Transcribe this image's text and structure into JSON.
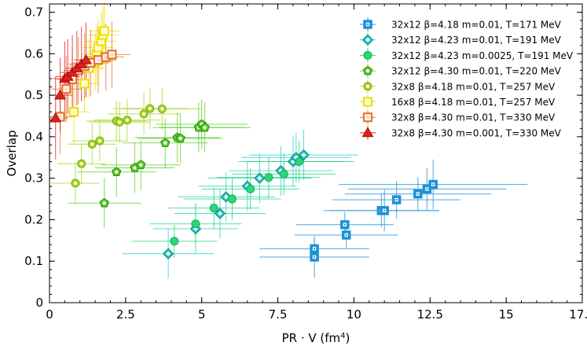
{
  "chart_data": {
    "type": "scatter",
    "xlabel": "PR · V (fm",
    "xlabel_sup": "4",
    "xlabel_end": ")",
    "ylabel": "Overlap",
    "xlim": [
      0,
      17.5
    ],
    "ylim": [
      0,
      0.72
    ],
    "x_ticks": [
      0,
      2.5,
      5,
      7.5,
      10,
      12.5,
      15,
      17.5
    ],
    "x_tick_labels": [
      "0",
      "2.5",
      "5",
      "7.5",
      "10",
      "12.5",
      "15",
      "17.5"
    ],
    "y_ticks": [
      0,
      0.1,
      0.2,
      0.3,
      0.4,
      0.5,
      0.6,
      0.7
    ],
    "y_tick_labels": [
      "0",
      "0.1",
      "0.2",
      "0.3",
      "0.4",
      "0.5",
      "0.6",
      "0.7"
    ],
    "legend_position": "top-right",
    "grid": false,
    "series": [
      {
        "name": "32x12 β=4.18 m=0.01, T=171 MeV",
        "marker": "square-dot",
        "color": "#1e90d8",
        "points": [
          [
            8.7,
            0.13,
            1.8,
            0.025
          ],
          [
            8.7,
            0.11,
            1.8,
            0.05
          ],
          [
            9.7,
            0.188,
            1.6,
            0.03
          ],
          [
            9.75,
            0.163,
            1.7,
            0.03
          ],
          [
            10.9,
            0.222,
            1.9,
            0.04
          ],
          [
            11.0,
            0.222,
            1.8,
            0.05
          ],
          [
            11.4,
            0.248,
            2.1,
            0.045
          ],
          [
            12.1,
            0.262,
            2.4,
            0.04
          ],
          [
            12.4,
            0.274,
            2.6,
            0.05
          ],
          [
            12.6,
            0.285,
            3.1,
            0.06
          ]
        ]
      },
      {
        "name": "32x12 β=4.23 m=0.01, T=191 MeV",
        "marker": "diamond",
        "color": "#2ed0c8",
        "points": [
          [
            3.9,
            0.118,
            1.5,
            0.06
          ],
          [
            4.8,
            0.178,
            1.4,
            0.06
          ],
          [
            5.6,
            0.215,
            1.5,
            0.06
          ],
          [
            5.8,
            0.255,
            1.6,
            0.06
          ],
          [
            6.5,
            0.281,
            1.6,
            0.06
          ],
          [
            6.9,
            0.3,
            1.7,
            0.06
          ],
          [
            7.6,
            0.318,
            1.7,
            0.06
          ],
          [
            8.0,
            0.34,
            1.8,
            0.06
          ],
          [
            8.1,
            0.35,
            1.8,
            0.06
          ],
          [
            8.35,
            0.356,
            1.8,
            0.06
          ]
        ]
      },
      {
        "name": "32x12 β=4.23 m=0.0025, T=191 MeV",
        "marker": "circle",
        "color": "#28d878",
        "points": [
          [
            4.1,
            0.148,
            1.4,
            0.04
          ],
          [
            4.8,
            0.19,
            1.5,
            0.05
          ],
          [
            5.4,
            0.228,
            1.5,
            0.05
          ],
          [
            6.0,
            0.25,
            1.6,
            0.05
          ],
          [
            6.6,
            0.274,
            1.6,
            0.05
          ],
          [
            7.2,
            0.302,
            1.7,
            0.05
          ],
          [
            7.7,
            0.31,
            1.7,
            0.05
          ],
          [
            8.2,
            0.34,
            1.8,
            0.05
          ]
        ]
      },
      {
        "name": "32x12 β=4.30 m=0.01, T=220 MeV",
        "marker": "pentagon",
        "color": "#60d030",
        "points": [
          [
            1.8,
            0.24,
            1.2,
            0.06
          ],
          [
            2.2,
            0.315,
            1.3,
            0.06
          ],
          [
            2.8,
            0.325,
            1.3,
            0.06
          ],
          [
            3.0,
            0.332,
            1.3,
            0.06
          ],
          [
            3.8,
            0.385,
            1.4,
            0.06
          ],
          [
            4.2,
            0.398,
            1.4,
            0.06
          ],
          [
            4.3,
            0.396,
            1.4,
            0.06
          ],
          [
            4.9,
            0.422,
            1.5,
            0.06
          ],
          [
            5.0,
            0.43,
            1.5,
            0.06
          ],
          [
            5.1,
            0.422,
            1.5,
            0.06
          ]
        ]
      },
      {
        "name": "32x8 β=4.18 m=0.01, T=257 MeV",
        "marker": "circle-dot",
        "color": "#a8d820",
        "points": [
          [
            0.85,
            0.288,
            0.8,
            0.05
          ],
          [
            1.05,
            0.335,
            0.8,
            0.05
          ],
          [
            1.4,
            0.382,
            0.8,
            0.05
          ],
          [
            1.65,
            0.39,
            0.9,
            0.05
          ],
          [
            2.2,
            0.438,
            1.0,
            0.05
          ],
          [
            2.3,
            0.435,
            1.0,
            0.05
          ],
          [
            2.55,
            0.44,
            1.1,
            0.05
          ],
          [
            3.1,
            0.455,
            1.2,
            0.05
          ],
          [
            3.3,
            0.468,
            1.2,
            0.05
          ],
          [
            3.7,
            0.467,
            1.3,
            0.05
          ]
        ]
      },
      {
        "name": "16x8 β=4.18 m=0.01, T=257 MeV",
        "marker": "square-open",
        "color": "#f0e000",
        "points": [
          [
            0.8,
            0.46,
            0.5,
            0.08
          ],
          [
            1.15,
            0.528,
            0.5,
            0.07
          ],
          [
            1.3,
            0.565,
            0.5,
            0.07
          ],
          [
            1.5,
            0.58,
            0.5,
            0.07
          ],
          [
            1.55,
            0.6,
            0.5,
            0.07
          ],
          [
            1.6,
            0.615,
            0.5,
            0.07
          ],
          [
            1.7,
            0.63,
            0.5,
            0.07
          ],
          [
            1.75,
            0.645,
            0.5,
            0.07
          ],
          [
            1.8,
            0.655,
            0.5,
            0.07
          ]
        ]
      },
      {
        "name": "32x8 β=4.30 m=0.01, T=330 MeV",
        "marker": "square-open",
        "color": "#e8742a",
        "points": [
          [
            0.35,
            0.448,
            0.5,
            0.09
          ],
          [
            0.55,
            0.515,
            0.5,
            0.08
          ],
          [
            0.75,
            0.538,
            0.5,
            0.08
          ],
          [
            0.95,
            0.56,
            0.5,
            0.08
          ],
          [
            1.15,
            0.57,
            0.5,
            0.08
          ],
          [
            1.35,
            0.578,
            0.6,
            0.08
          ],
          [
            1.6,
            0.585,
            0.6,
            0.08
          ],
          [
            1.85,
            0.592,
            0.6,
            0.08
          ],
          [
            2.05,
            0.598,
            0.6,
            0.08
          ]
        ]
      },
      {
        "name": "32x8 β=4.30 m=0.001, T=330 MeV",
        "marker": "triangle",
        "color": "#e02020",
        "points": [
          [
            0.2,
            0.445,
            0.4,
            0.1
          ],
          [
            0.35,
            0.5,
            0.4,
            0.09
          ],
          [
            0.5,
            0.54,
            0.4,
            0.09
          ],
          [
            0.6,
            0.545,
            0.4,
            0.09
          ],
          [
            0.75,
            0.555,
            0.4,
            0.09
          ],
          [
            0.9,
            0.565,
            0.4,
            0.09
          ],
          [
            1.05,
            0.575,
            0.4,
            0.09
          ],
          [
            1.2,
            0.585,
            0.4,
            0.09
          ]
        ]
      }
    ]
  }
}
